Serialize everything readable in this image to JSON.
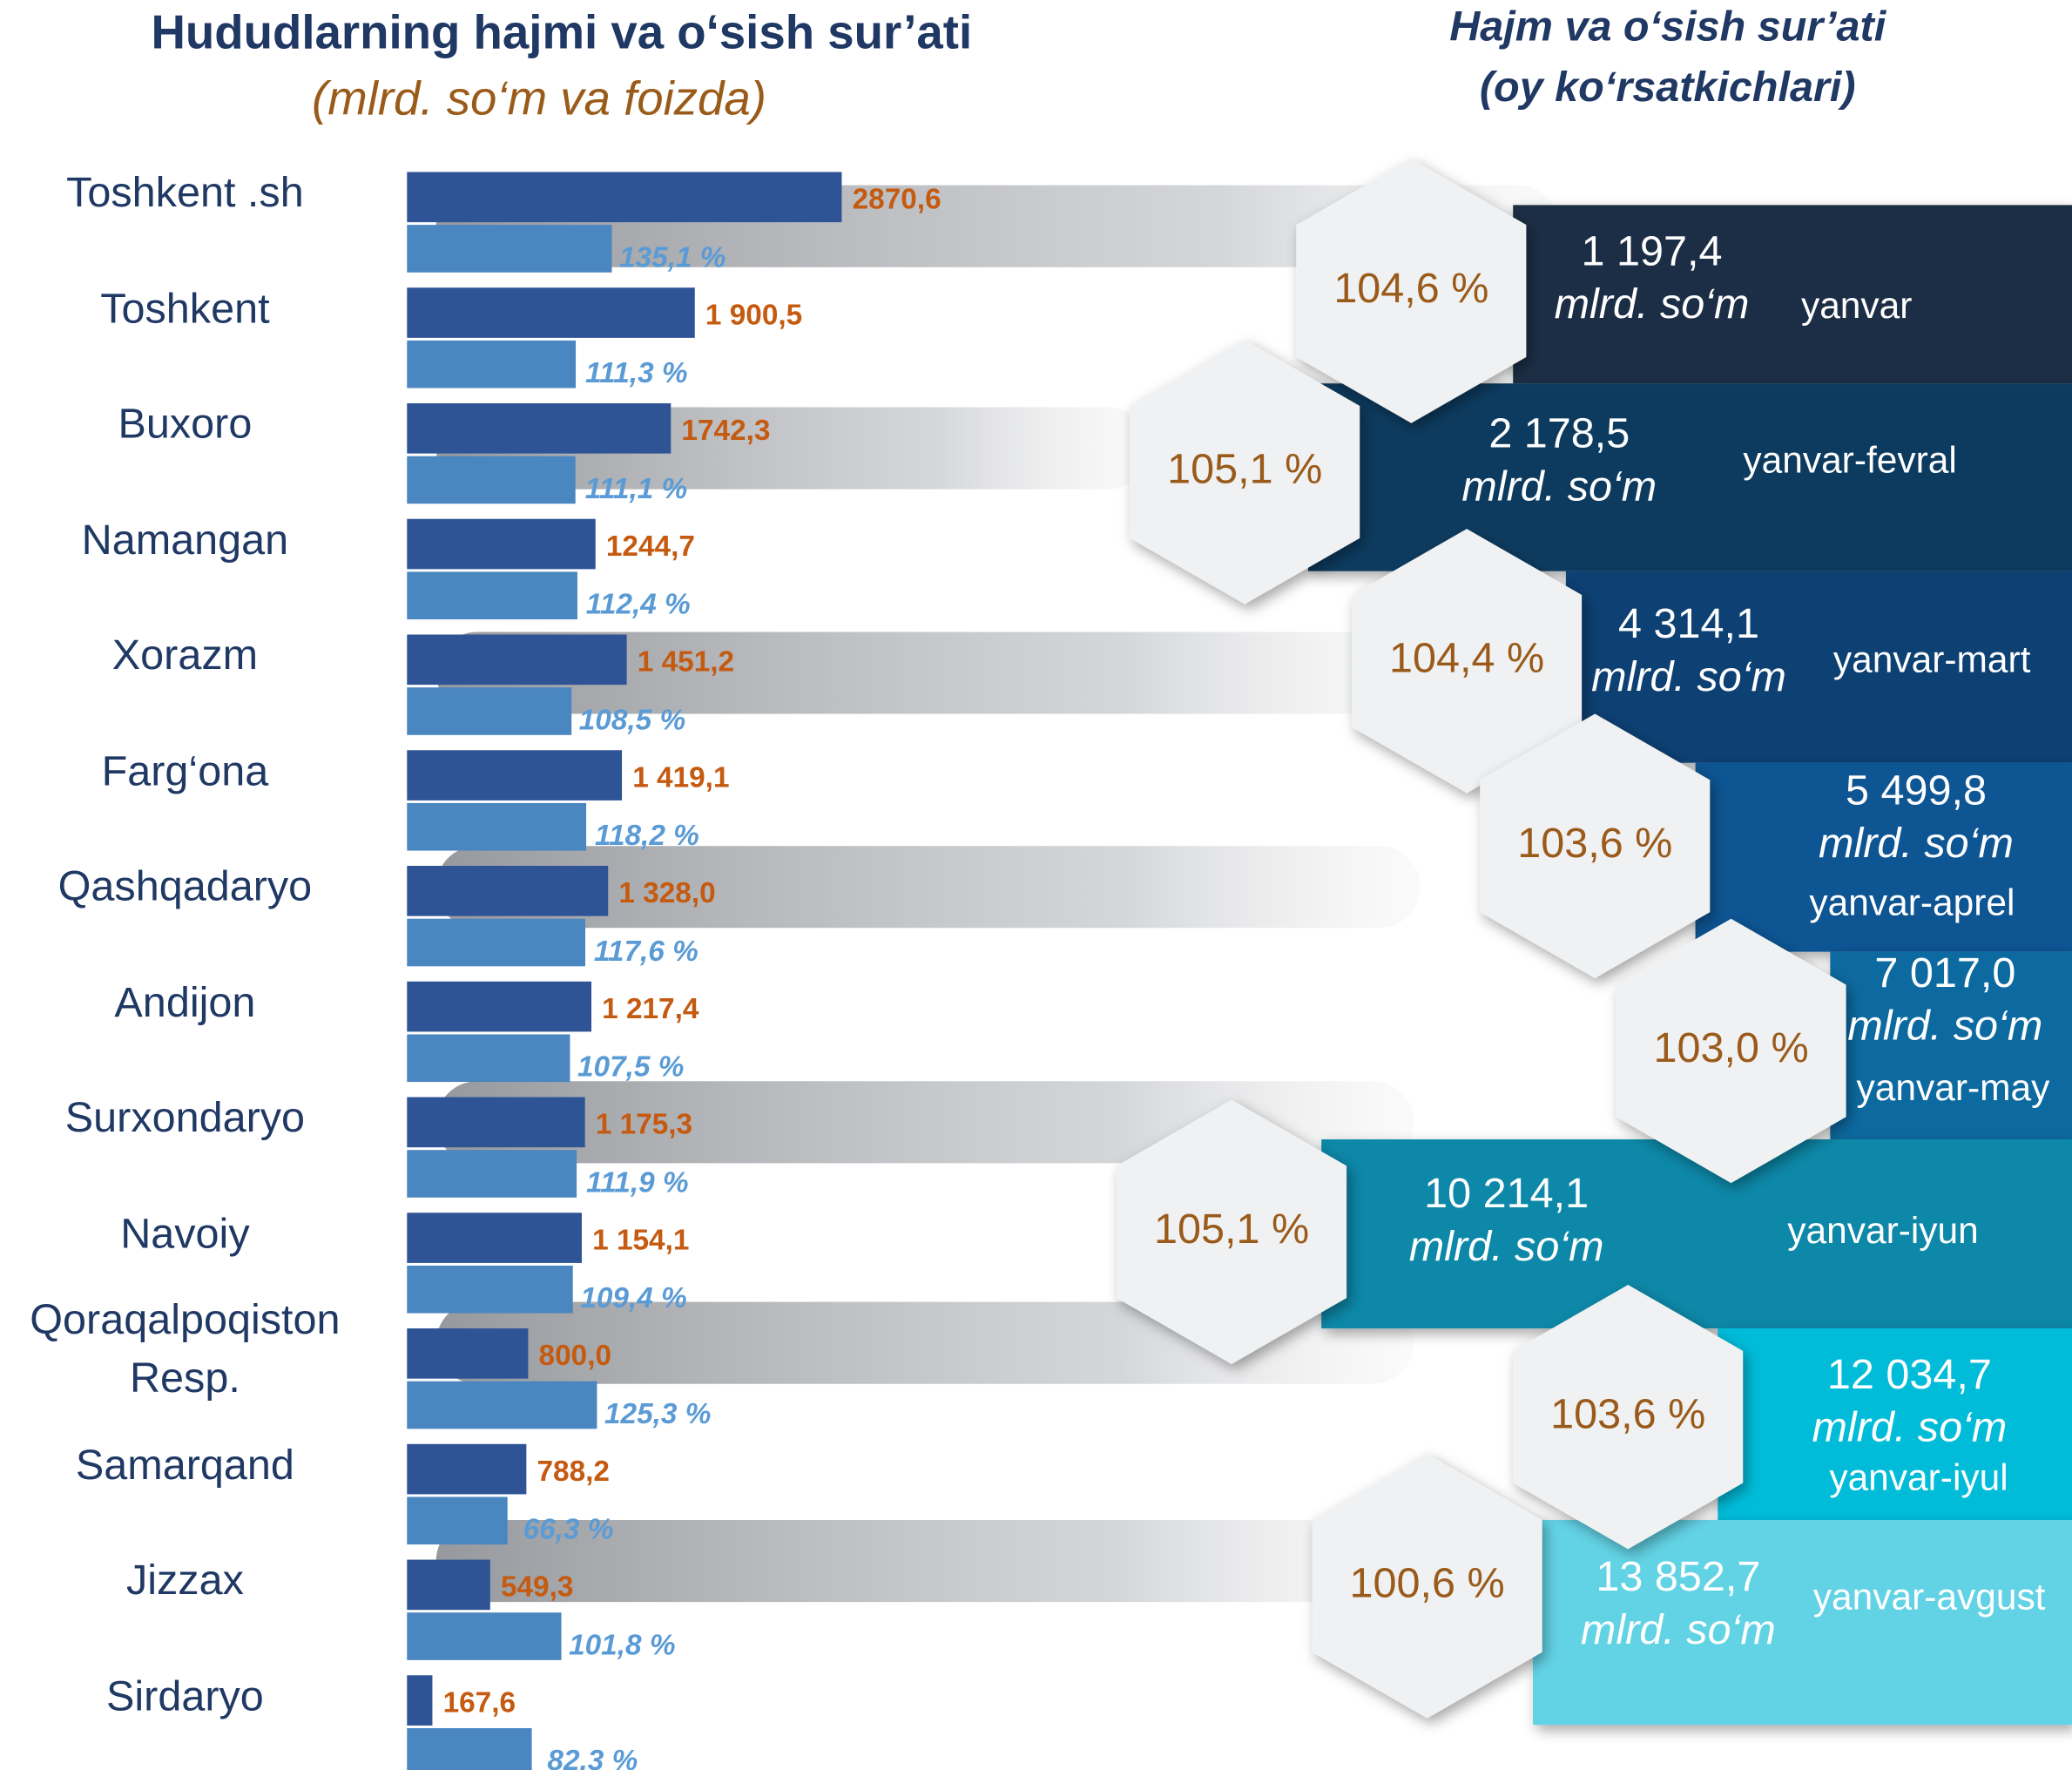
{
  "chart_data": [
    {
      "type": "hbar",
      "title": "Hududlarning hajmi va o‘sish sur’ati",
      "subtitle": "(mlrd. so‘m va foizda)",
      "categories": [
        "Toshkent .sh",
        "Toshkent",
        "Buxoro",
        "Namangan",
        "Xorazm",
        "Farg‘ona",
        "Qashqadaryo",
        "Andijon",
        "Surxondaryo",
        "Navoiy",
        "Qoraqalpoqiston Resp.",
        "Samarqand",
        "Jizzax",
        "Sirdaryo"
      ],
      "series": [
        {
          "color": "#2f5496",
          "values": [
            2870.6,
            1900.5,
            1742.3,
            1244.7,
            1451.2,
            1419.1,
            1328.0,
            1217.4,
            1175.3,
            1154.1,
            800.0,
            788.2,
            549.3,
            167.6
          ],
          "value_labels": [
            "2870,6",
            "1 900,5",
            "1742,3",
            "1244,7",
            "1 451,2",
            "1 419,1",
            "1 328,0",
            "1 217,4",
            "1 175,3",
            "1 154,1",
            "800,0",
            "788,2",
            "549,3",
            "167,6"
          ],
          "label_color": "#c55a11"
        },
        {
          "color": "#4a86c0",
          "values": [
            135.1,
            111.3,
            111.1,
            112.4,
            108.5,
            118.2,
            117.6,
            107.5,
            111.9,
            109.4,
            125.3,
            66.3,
            101.8,
            82.3
          ],
          "value_labels": [
            "135,1 %",
            "111,3 %",
            "111,1 %",
            "112,4 %",
            "108,5 %",
            "118,2 %",
            "117,6 %",
            "107,5 %",
            "111,9 %",
            "109,4 %",
            "125,3 %",
            "66,3 %",
            "101,8 %",
            "82,3 %"
          ],
          "label_color": "#5b9bd5"
        }
      ]
    },
    {
      "type": "steps",
      "title": "Hajm va o‘sish sur’ati",
      "subtitle": "(oy ko‘rsatkichlari)",
      "unit": "mlrd. so‘m",
      "categories": [
        "yanvar",
        "yanvar-fevral",
        "yanvar-mart",
        "yanvar-aprel",
        "yanvar-may",
        "yanvar-iyun",
        "yanvar-iyul",
        "yanvar-avgust"
      ],
      "values": [
        1197.4,
        2178.5,
        4314.1,
        5499.8,
        7017.0,
        10214.1,
        12034.7,
        13852.7
      ],
      "value_labels": [
        "1 197,4",
        "2 178,5",
        "4 314,1",
        "5 499,8",
        "7 017,0",
        "10 214,1",
        "12 034,7",
        "13 852,7"
      ],
      "growth": [
        104.6,
        105.1,
        104.4,
        103.6,
        103.0,
        105.1,
        103.6,
        100.6
      ],
      "growth_labels": [
        "104,6 %",
        "105,1 %",
        "104,4 %",
        "103,6 %",
        "103,0 %",
        "105,1 %",
        "103,6 %",
        "100,6 %"
      ],
      "colors": [
        "#1f2d45",
        "#0e3a5e",
        "#0d3f73",
        "#0a5593",
        "#0b6aa0",
        "#0788a8",
        "#03bcd9",
        "#62d3e5"
      ]
    }
  ]
}
